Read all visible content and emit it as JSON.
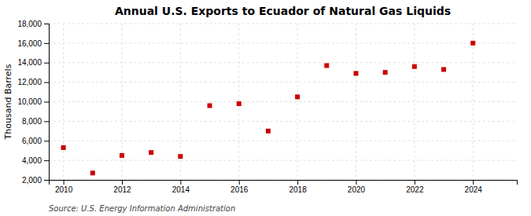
{
  "chart_data": {
    "type": "scatter",
    "title": "Annual U.S. Exports to Ecuador of Natural Gas Liquids",
    "ylabel": "Thousand Barrels",
    "source": "Source: U.S. Energy Information Administration",
    "x": [
      2010,
      2011,
      2012,
      2013,
      2014,
      2015,
      2016,
      2017,
      2018,
      2019,
      2020,
      2021,
      2022,
      2023,
      2024
    ],
    "values": [
      5300,
      2700,
      4500,
      4800,
      4400,
      9600,
      9800,
      7000,
      10500,
      13700,
      12900,
      13000,
      13600,
      13300,
      16000
    ],
    "color": "#cc0000",
    "marker": "square",
    "xlim": [
      2009.5,
      2025.5
    ],
    "ylim": [
      2000,
      18000
    ],
    "xticks": [
      2010,
      2012,
      2014,
      2016,
      2018,
      2020,
      2022,
      2024
    ],
    "yticks": [
      {
        "value": 2000,
        "label": "2,000"
      },
      {
        "value": 4000,
        "label": "4,000"
      },
      {
        "value": 6000,
        "label": "6,000"
      },
      {
        "value": 8000,
        "label": "8,000"
      },
      {
        "value": 10000,
        "label": "10,000"
      },
      {
        "value": 12000,
        "label": "12,000"
      },
      {
        "value": 14000,
        "label": "14,000"
      },
      {
        "value": 16000,
        "label": "16,000"
      },
      {
        "value": 18000,
        "label": "18,000"
      }
    ],
    "grid": true
  }
}
